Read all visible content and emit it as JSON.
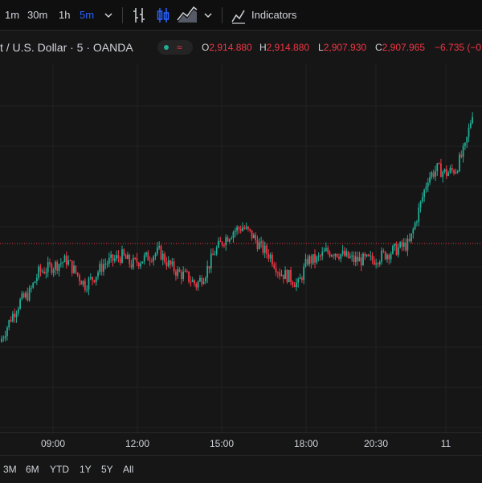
{
  "toolbar": {
    "intervals": [
      "1m",
      "30m",
      "1h",
      "5m"
    ],
    "active_interval": "5m",
    "indicators_label": "Indicators",
    "icons": [
      "chevron-down-icon",
      "bar-style-icon",
      "candle-style-icon",
      "area-style-icon",
      "chevron-down-icon",
      "indicators-icon"
    ]
  },
  "legend": {
    "symbol": "t / U.S. Dollar · 5 · OANDA",
    "status_icon": "≈",
    "open_label": "O",
    "open": "2,914.880",
    "high_label": "H",
    "high": "2,914.880",
    "low_label": "L",
    "low": "2,907.930",
    "close_label": "C",
    "close": "2,907.965",
    "change": "−6.735",
    "change_pct": "(−0"
  },
  "colors": {
    "up": "#22ab94",
    "down": "#f23645",
    "accent": "#2962ff",
    "reference_line": "#f23645"
  },
  "chart_data": {
    "type": "candlestick",
    "time_labels": [
      "09:00",
      "12:00",
      "15:00",
      "18:00",
      "20:30",
      "11"
    ],
    "closes": [
      2897.0,
      2899.5,
      2901.5,
      2902.5,
      2905.0,
      2905.5,
      2906.0,
      2906.5,
      2905.0,
      2903.5,
      2904.5,
      2906.0,
      2906.5,
      2907.0,
      2906.0,
      2906.5,
      2907.0,
      2907.5,
      2906.0,
      2905.0,
      2904.5,
      2903.5,
      2905.0,
      2907.5,
      2909.0,
      2910.0,
      2910.5,
      2909.5,
      2908.0,
      2907.0,
      2905.0,
      2904.5,
      2903.5,
      2906.5,
      2906.5,
      2907.5,
      2907.5,
      2907.0,
      2906.5,
      2906.5,
      2906.5,
      2907.0,
      2907.5,
      2908.0,
      2908.5,
      2912.5,
      2916.5,
      2917.5,
      2917.0,
      2917.5,
      2920.0,
      2925.5
    ],
    "last_price_line": 2908.5
  },
  "range_bar": {
    "ranges": [
      "3M",
      "6M",
      "YTD",
      "1Y",
      "5Y",
      "All"
    ]
  }
}
